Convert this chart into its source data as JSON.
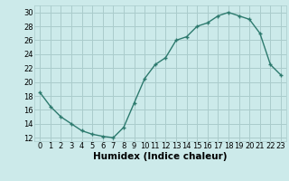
{
  "title": "",
  "xlabel": "Humidex (Indice chaleur)",
  "ylabel": "",
  "x": [
    0,
    1,
    2,
    3,
    4,
    5,
    6,
    7,
    8,
    9,
    10,
    11,
    12,
    13,
    14,
    15,
    16,
    17,
    18,
    19,
    20,
    21,
    22,
    23
  ],
  "y": [
    18.5,
    16.5,
    15.0,
    14.0,
    13.0,
    12.5,
    12.2,
    12.0,
    13.5,
    17.0,
    20.5,
    22.5,
    23.5,
    26.0,
    26.5,
    28.0,
    28.5,
    29.5,
    30.0,
    29.5,
    29.0,
    27.0,
    22.5,
    21.0
  ],
  "line_color": "#2d7a6e",
  "marker": "+",
  "marker_size": 3.5,
  "marker_lw": 1.0,
  "bg_color": "#cceaea",
  "grid_color": "#aacccc",
  "ylim": [
    11.5,
    31
  ],
  "yticks": [
    12,
    14,
    16,
    18,
    20,
    22,
    24,
    26,
    28,
    30
  ],
  "xlim": [
    -0.5,
    23.5
  ],
  "xticks": [
    0,
    1,
    2,
    3,
    4,
    5,
    6,
    7,
    8,
    9,
    10,
    11,
    12,
    13,
    14,
    15,
    16,
    17,
    18,
    19,
    20,
    21,
    22,
    23
  ],
  "xlabel_fontsize": 7.5,
  "tick_fontsize": 6.0,
  "line_width": 1.0
}
